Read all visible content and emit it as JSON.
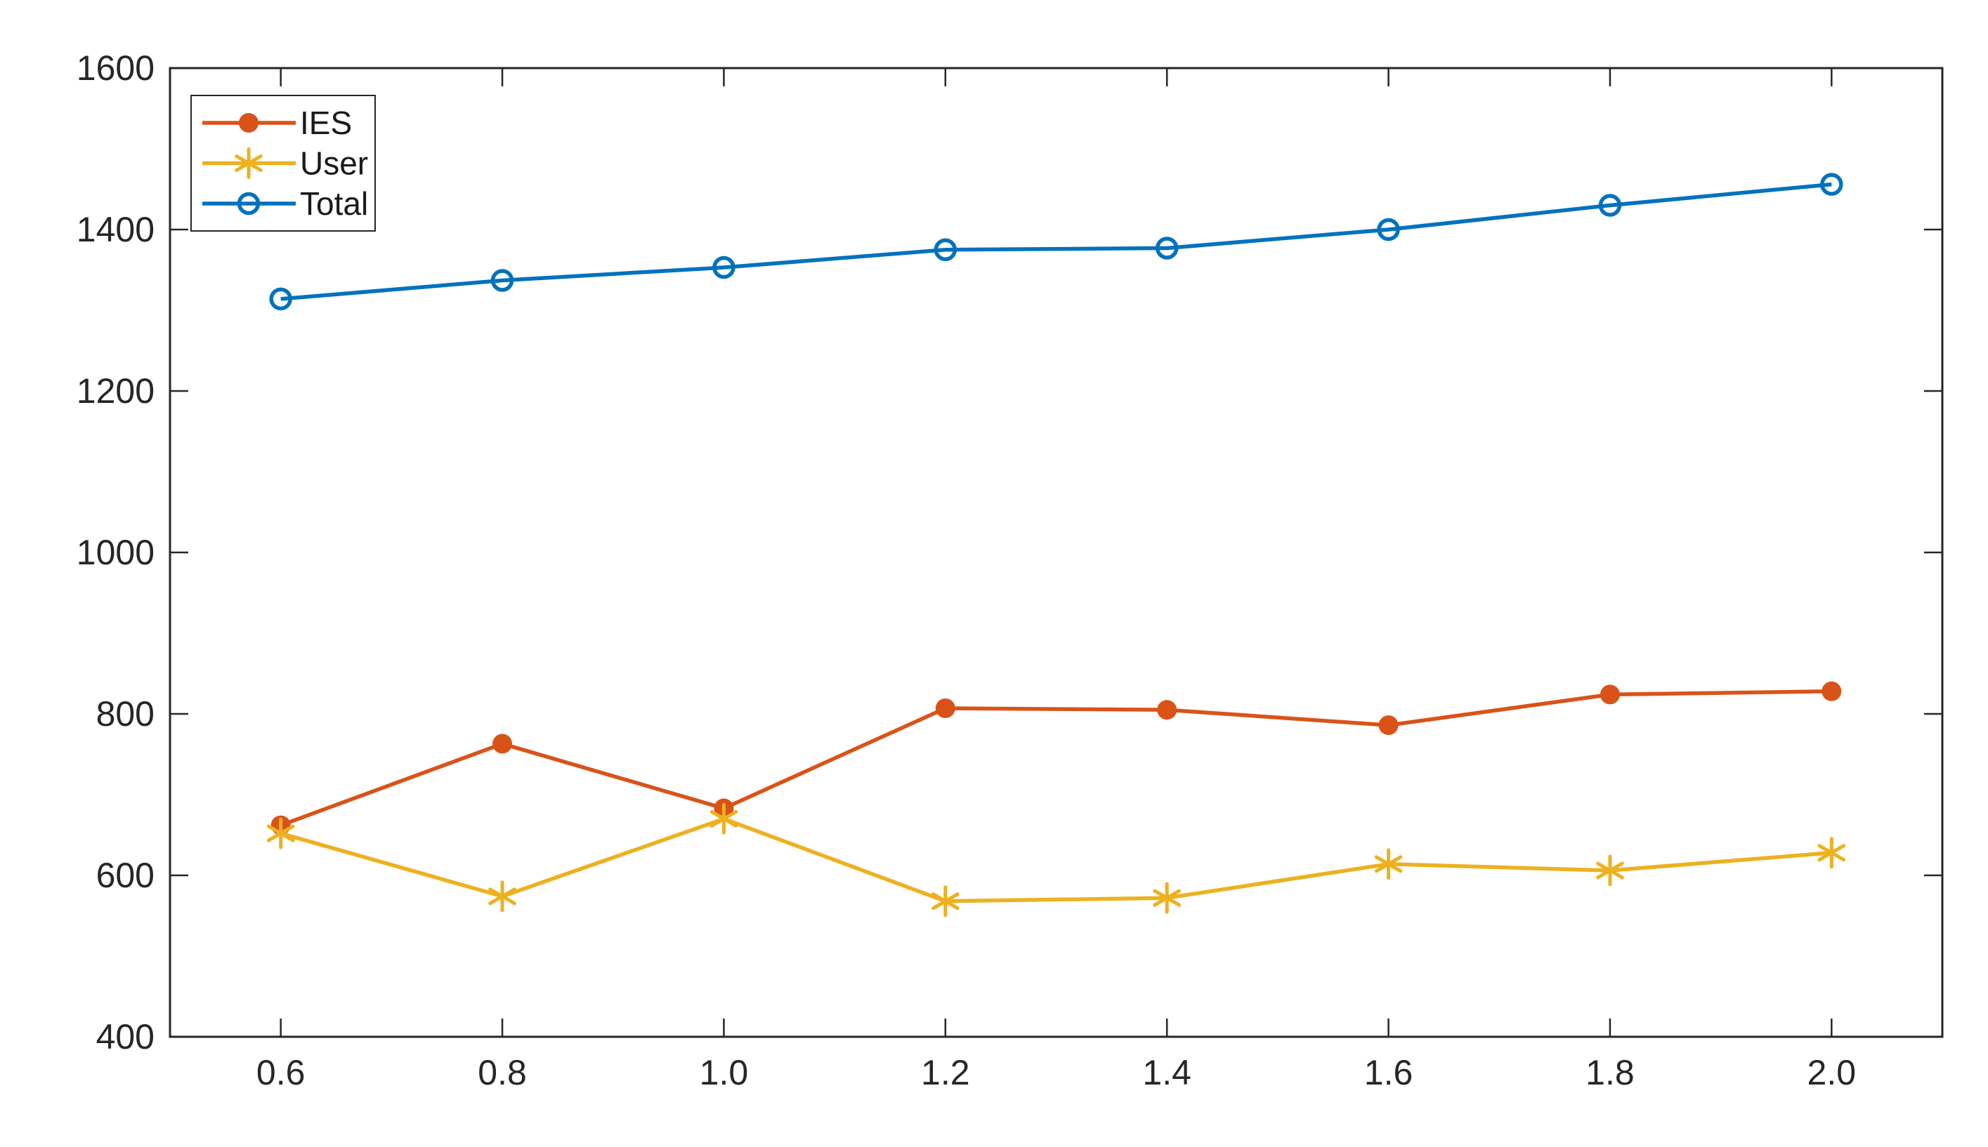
{
  "figure": {
    "background": "#ffffff",
    "axis_color": "#262626",
    "tick_label_color": "#262626",
    "legend": {
      "position": "top-left",
      "border_color": "#262626",
      "background": "#ffffff",
      "entries": [
        "IES",
        "User",
        "Total"
      ]
    }
  },
  "chart_data": {
    "type": "line",
    "title": "",
    "xlabel": "",
    "ylabel": "",
    "xlim": [
      0.5,
      2.1
    ],
    "ylim": [
      400,
      1600
    ],
    "grid": false,
    "legend_position": "top-left",
    "x_tick_labels": [
      "0.6",
      "0.8",
      "1.0",
      "1.2",
      "1.4",
      "1.6",
      "1.8",
      "2.0"
    ],
    "y_tick_labels": [
      "400",
      "600",
      "800",
      "1000",
      "1200",
      "1400",
      "1600"
    ],
    "x": [
      0.6,
      0.8,
      1.0,
      1.2,
      1.4,
      1.6,
      1.8,
      2.0
    ],
    "series": [
      {
        "name": "IES",
        "color": "#D95319",
        "marker": "filled-circle",
        "values": [
          662,
          763,
          683,
          807,
          805,
          786,
          824,
          828
        ]
      },
      {
        "name": "User",
        "color": "#EDB120",
        "marker": "asterisk",
        "values": [
          652,
          574,
          670,
          568,
          572,
          614,
          606,
          628
        ]
      },
      {
        "name": "Total",
        "color": "#0072BD",
        "marker": "open-circle",
        "values": [
          1314,
          1337,
          1353,
          1375,
          1377,
          1400,
          1430,
          1456
        ]
      }
    ]
  }
}
